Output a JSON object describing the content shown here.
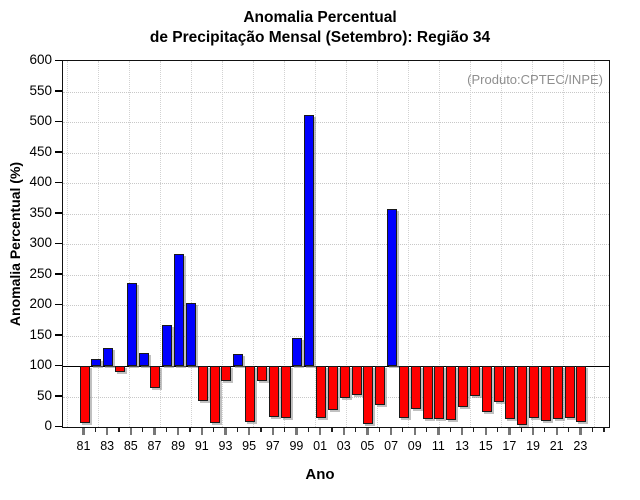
{
  "header": {
    "title_line1": "Anomalia Percentual",
    "title_line2": "de Precipitação Mensal (Setembro): Região 34"
  },
  "annotation": "(Produto:CPTEC/INPE)",
  "axes": {
    "y_title": "Anomalia Percentual (%)",
    "x_title": "Ano"
  },
  "colors": {
    "above_baseline": "#0000ff",
    "below_baseline": "#ff0000",
    "baseline_line": "#000000",
    "grid": "#c8c8c8",
    "annotation_text": "#8f8f8f",
    "frame": "#111111"
  },
  "chart_data": {
    "type": "bar",
    "title": "Anomalia Percentual de Precipitação Mensal (Setembro): Região 34",
    "xlabel": "Ano",
    "ylabel": "Anomalia Percentual (%)",
    "ylim": [
      0,
      600
    ],
    "yticks": [
      0,
      50,
      100,
      150,
      200,
      250,
      300,
      350,
      400,
      450,
      500,
      550,
      600
    ],
    "baseline": 100,
    "grid": true,
    "x_tick_labels": [
      "81",
      "83",
      "85",
      "87",
      "89",
      "91",
      "93",
      "95",
      "97",
      "99",
      "01",
      "03",
      "05",
      "07",
      "09",
      "11",
      "13",
      "15",
      "17",
      "19",
      "21",
      "23"
    ],
    "years": [
      1981,
      1982,
      1983,
      1984,
      1985,
      1986,
      1987,
      1988,
      1989,
      1990,
      1991,
      1992,
      1993,
      1994,
      1995,
      1996,
      1997,
      1998,
      1999,
      2000,
      2001,
      2002,
      2003,
      2004,
      2005,
      2006,
      2007,
      2008,
      2009,
      2010,
      2011,
      2012,
      2013,
      2014,
      2015,
      2016,
      2017,
      2018,
      2019,
      2020,
      2021,
      2022,
      2023
    ],
    "values": [
      7,
      112,
      129,
      90,
      236,
      122,
      64,
      168,
      283,
      204,
      43,
      7,
      75,
      120,
      9,
      76,
      17,
      14,
      146,
      512,
      14,
      28,
      47,
      53,
      5,
      36,
      358,
      14,
      29,
      13,
      13,
      11,
      33,
      51,
      25,
      41,
      13,
      4,
      15,
      10,
      13,
      14,
      8
    ],
    "color_rule": "value >= 100 blue (above baseline), otherwise red (below baseline)"
  }
}
